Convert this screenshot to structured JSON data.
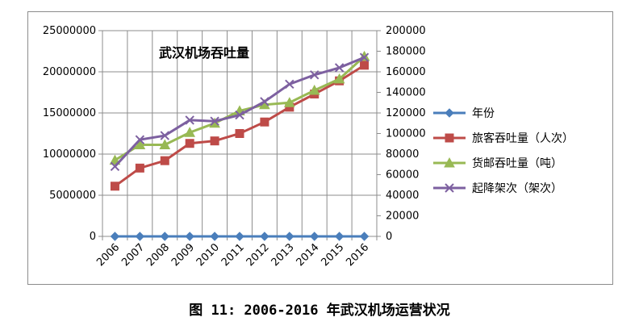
{
  "caption": "图 11: 2006-2016 年武汉机场运营状况",
  "chart_data": {
    "type": "line",
    "title": "武汉机场吞吐量",
    "categories": [
      "2006",
      "2007",
      "2008",
      "2009",
      "2010",
      "2011",
      "2012",
      "2013",
      "2014",
      "2015",
      "2016"
    ],
    "y_left": {
      "ylim": [
        0,
        25000000
      ],
      "ticks": [
        "0",
        "5000000",
        "10000000",
        "15000000",
        "20000000",
        "25000000"
      ]
    },
    "y_right": {
      "ylim": [
        0,
        200000
      ],
      "ticks": [
        "0",
        "20000",
        "40000",
        "60000",
        "80000",
        "100000",
        "120000",
        "140000",
        "160000",
        "180000",
        "200000"
      ]
    },
    "grid": true,
    "legend_position": "right",
    "series": [
      {
        "name": "年份",
        "axis": "left",
        "marker": "diamond",
        "color": "#4a7ebb",
        "values": [
          0,
          0,
          0,
          0,
          0,
          0,
          0,
          0,
          0,
          0,
          0
        ]
      },
      {
        "name": "旅客吞吐量（人次）",
        "axis": "left",
        "marker": "square",
        "color": "#be4b48",
        "values": [
          6100000,
          8300000,
          9200000,
          11300000,
          11600000,
          12500000,
          13900000,
          15700000,
          17300000,
          18900000,
          20800000
        ]
      },
      {
        "name": "货邮吞吐量（吨）",
        "axis": "right",
        "marker": "triangle",
        "color": "#98b954",
        "values": [
          74000,
          89000,
          89000,
          101000,
          110000,
          122000,
          128000,
          130000,
          142000,
          153000,
          175000
        ]
      },
      {
        "name": "起降架次（架次）",
        "axis": "right",
        "marker": "x",
        "color": "#7d60a0",
        "values": [
          68000,
          94000,
          98000,
          113000,
          112000,
          118000,
          131000,
          148000,
          157000,
          164000,
          174000
        ]
      }
    ]
  }
}
